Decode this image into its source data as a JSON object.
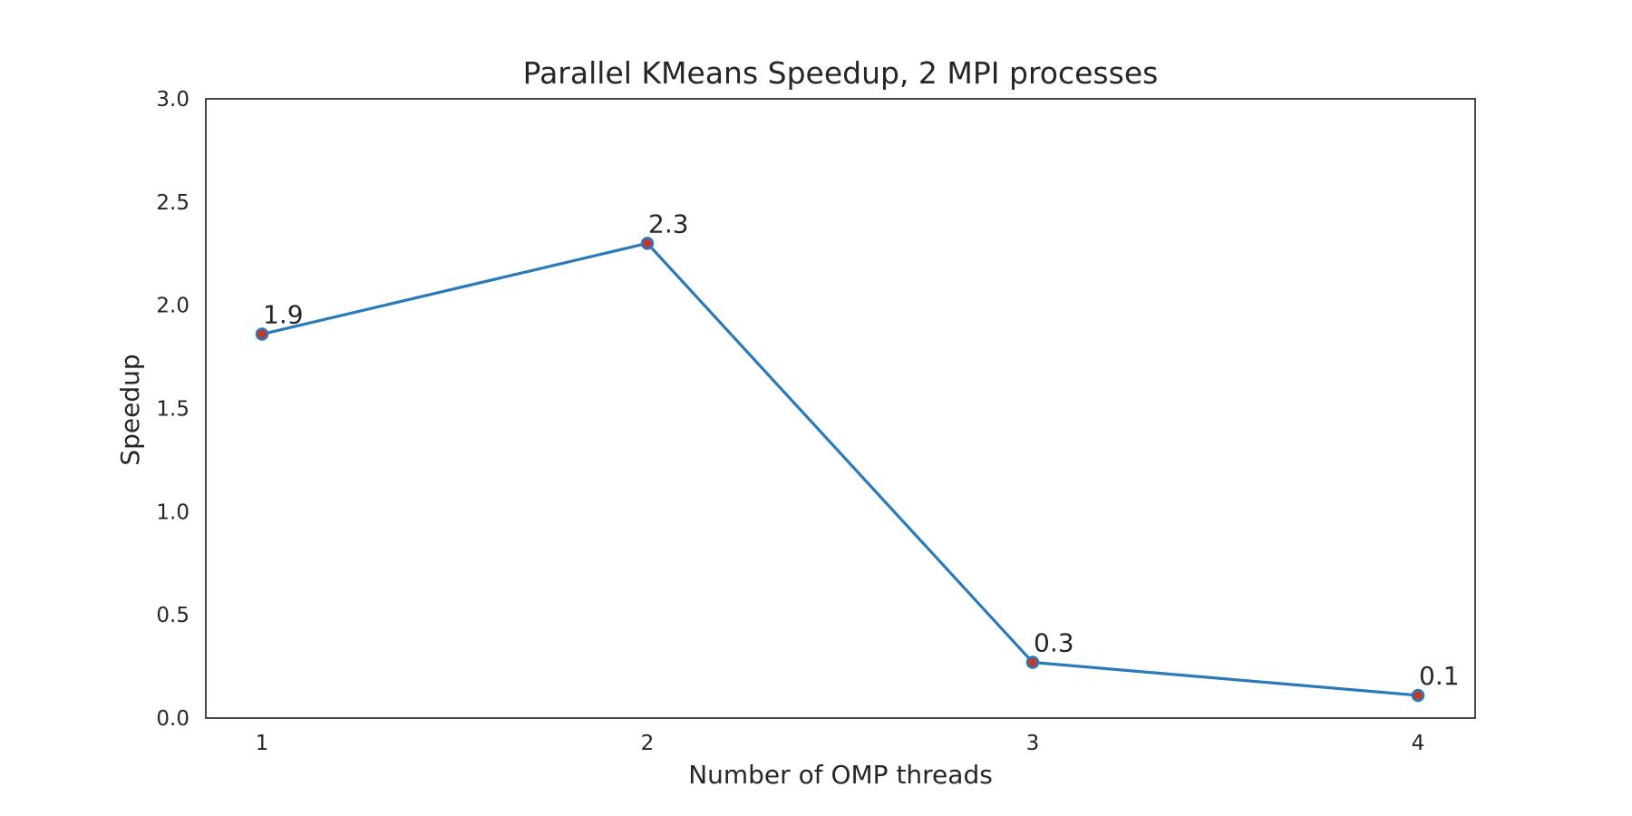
{
  "chart_data": {
    "type": "line",
    "title": "Parallel KMeans Speedup, 2 MPI processes",
    "xlabel": "Number of OMP threads",
    "ylabel": "Speedup",
    "x": [
      1,
      2,
      3,
      4
    ],
    "x_tick_labels": [
      "1",
      "2",
      "3",
      "4"
    ],
    "ylim": [
      0,
      3.0
    ],
    "y_tick_labels": [
      "0.0",
      "0.5",
      "1.0",
      "1.5",
      "2.0",
      "2.5",
      "3.0"
    ],
    "grid": false,
    "series": [
      {
        "values": [
          1.86,
          2.3,
          0.27,
          0.11
        ],
        "data_labels": [
          "1.9",
          "2.3",
          "0.3",
          "0.1"
        ],
        "line_color": "#2a7ab9",
        "marker_fill": "#c0392b",
        "marker_edge": "#2a7ab9"
      }
    ],
    "axis_color": "#1a1a1a",
    "text_color": "#262626"
  }
}
